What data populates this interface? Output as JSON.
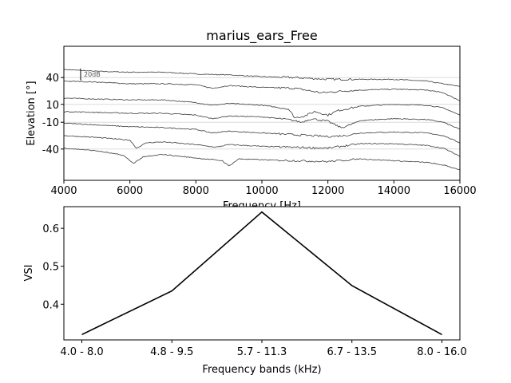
{
  "chart_data": [
    {
      "type": "line",
      "title": "marius_ears_Free",
      "xlabel": "Frequency [Hz]",
      "ylabel": "Elevation [°]",
      "xlim": [
        4000,
        16000
      ],
      "x_ticks": [
        "4000",
        "6000",
        "8000",
        "10000",
        "12000",
        "14000",
        "16000"
      ],
      "x_tick_values": [
        4000,
        6000,
        8000,
        10000,
        12000,
        14000,
        16000
      ],
      "y_ticks": [
        "40",
        "10",
        "-10",
        "-40"
      ],
      "y_tick_values": [
        40,
        10,
        -10,
        -40
      ],
      "ylim": [
        -75,
        75
      ],
      "scale_bar_label": "20dB",
      "line_color": "#3a3a3a",
      "series": [
        {
          "elevation": 50,
          "points": [
            [
              4000,
              49
            ],
            [
              5000,
              47
            ],
            [
              6000,
              46
            ],
            [
              7000,
              46
            ],
            [
              8000,
              44
            ],
            [
              9000,
              43
            ],
            [
              10000,
              41
            ],
            [
              11000,
              40
            ],
            [
              12000,
              38
            ],
            [
              13000,
              38
            ],
            [
              14000,
              38
            ],
            [
              15000,
              36
            ],
            [
              16000,
              30
            ]
          ]
        },
        {
          "elevation": 35,
          "points": [
            [
              4000,
              36
            ],
            [
              5000,
              35
            ],
            [
              6000,
              33
            ],
            [
              7000,
              33
            ],
            [
              8000,
              32
            ],
            [
              8500,
              28
            ],
            [
              9000,
              31
            ],
            [
              10000,
              29
            ],
            [
              11000,
              28
            ],
            [
              11800,
              23
            ],
            [
              12500,
              25
            ],
            [
              13000,
              26
            ],
            [
              14000,
              27
            ],
            [
              15000,
              26
            ],
            [
              15500,
              23
            ],
            [
              16000,
              14
            ]
          ]
        },
        {
          "elevation": 15,
          "points": [
            [
              4000,
              17
            ],
            [
              5000,
              16
            ],
            [
              6000,
              15
            ],
            [
              7000,
              15
            ],
            [
              8000,
              12
            ],
            [
              8500,
              9
            ],
            [
              9000,
              11
            ],
            [
              10000,
              9
            ],
            [
              10800,
              5
            ],
            [
              11000,
              -5
            ],
            [
              11300,
              -3
            ],
            [
              11600,
              2
            ],
            [
              12000,
              -2
            ],
            [
              12300,
              3
            ],
            [
              12700,
              6
            ],
            [
              13000,
              8
            ],
            [
              14000,
              10
            ],
            [
              15000,
              9
            ],
            [
              15500,
              6
            ],
            [
              16000,
              -2
            ]
          ]
        },
        {
          "elevation": 0,
          "points": [
            [
              4000,
              2
            ],
            [
              5000,
              1
            ],
            [
              6000,
              0
            ],
            [
              7000,
              0
            ],
            [
              8000,
              -2
            ],
            [
              8500,
              -6
            ],
            [
              9000,
              -3
            ],
            [
              10000,
              -4
            ],
            [
              10800,
              -7
            ],
            [
              11200,
              -10
            ],
            [
              11500,
              -6
            ],
            [
              12000,
              -9
            ],
            [
              12400,
              -16
            ],
            [
              12600,
              -14
            ],
            [
              13000,
              -8
            ],
            [
              14000,
              -6
            ],
            [
              15000,
              -7
            ],
            [
              15500,
              -10
            ],
            [
              16000,
              -18
            ]
          ]
        },
        {
          "elevation": -15,
          "points": [
            [
              4000,
              -11
            ],
            [
              5000,
              -13
            ],
            [
              6000,
              -15
            ],
            [
              7000,
              -16
            ],
            [
              8000,
              -18
            ],
            [
              8500,
              -22
            ],
            [
              9000,
              -20
            ],
            [
              10000,
              -22
            ],
            [
              11000,
              -24
            ],
            [
              12000,
              -26
            ],
            [
              12500,
              -25
            ],
            [
              13000,
              -22
            ],
            [
              14000,
              -21
            ],
            [
              15000,
              -22
            ],
            [
              15500,
              -25
            ],
            [
              16000,
              -33
            ]
          ]
        },
        {
          "elevation": -30,
          "points": [
            [
              4000,
              -25
            ],
            [
              5000,
              -27
            ],
            [
              6000,
              -30
            ],
            [
              6200,
              -39
            ],
            [
              6500,
              -33
            ],
            [
              7000,
              -32
            ],
            [
              8000,
              -35
            ],
            [
              8600,
              -38
            ],
            [
              9000,
              -35
            ],
            [
              10000,
              -37
            ],
            [
              11000,
              -38
            ],
            [
              12000,
              -39
            ],
            [
              13000,
              -34
            ],
            [
              14000,
              -34
            ],
            [
              15000,
              -36
            ],
            [
              15500,
              -39
            ],
            [
              16000,
              -48
            ]
          ]
        },
        {
          "elevation": -45,
          "points": [
            [
              4000,
              -39
            ],
            [
              5000,
              -42
            ],
            [
              5800,
              -47
            ],
            [
              6100,
              -56
            ],
            [
              6400,
              -49
            ],
            [
              7000,
              -46
            ],
            [
              8000,
              -50
            ],
            [
              8800,
              -53
            ],
            [
              9000,
              -59
            ],
            [
              9300,
              -51
            ],
            [
              10000,
              -52
            ],
            [
              11000,
              -53
            ],
            [
              12000,
              -54
            ],
            [
              13000,
              -51
            ],
            [
              14000,
              -53
            ],
            [
              15000,
              -55
            ],
            [
              15500,
              -58
            ],
            [
              16000,
              -63
            ]
          ]
        }
      ]
    },
    {
      "type": "line",
      "title": "",
      "xlabel": "Frequency bands (kHz)",
      "ylabel": "VSI",
      "categories": [
        "4.0 - 8.0",
        "4.8 - 9.5",
        "5.7 - 11.3",
        "6.7 - 13.5",
        "8.0 - 16.0"
      ],
      "values": [
        0.32,
        0.435,
        0.643,
        0.449,
        0.32
      ],
      "y_ticks": [
        "0.4",
        "0.5",
        "0.6"
      ],
      "y_tick_values": [
        0.4,
        0.5,
        0.6
      ],
      "ylim": [
        0.306,
        0.657
      ],
      "line_color": "#000000"
    }
  ]
}
